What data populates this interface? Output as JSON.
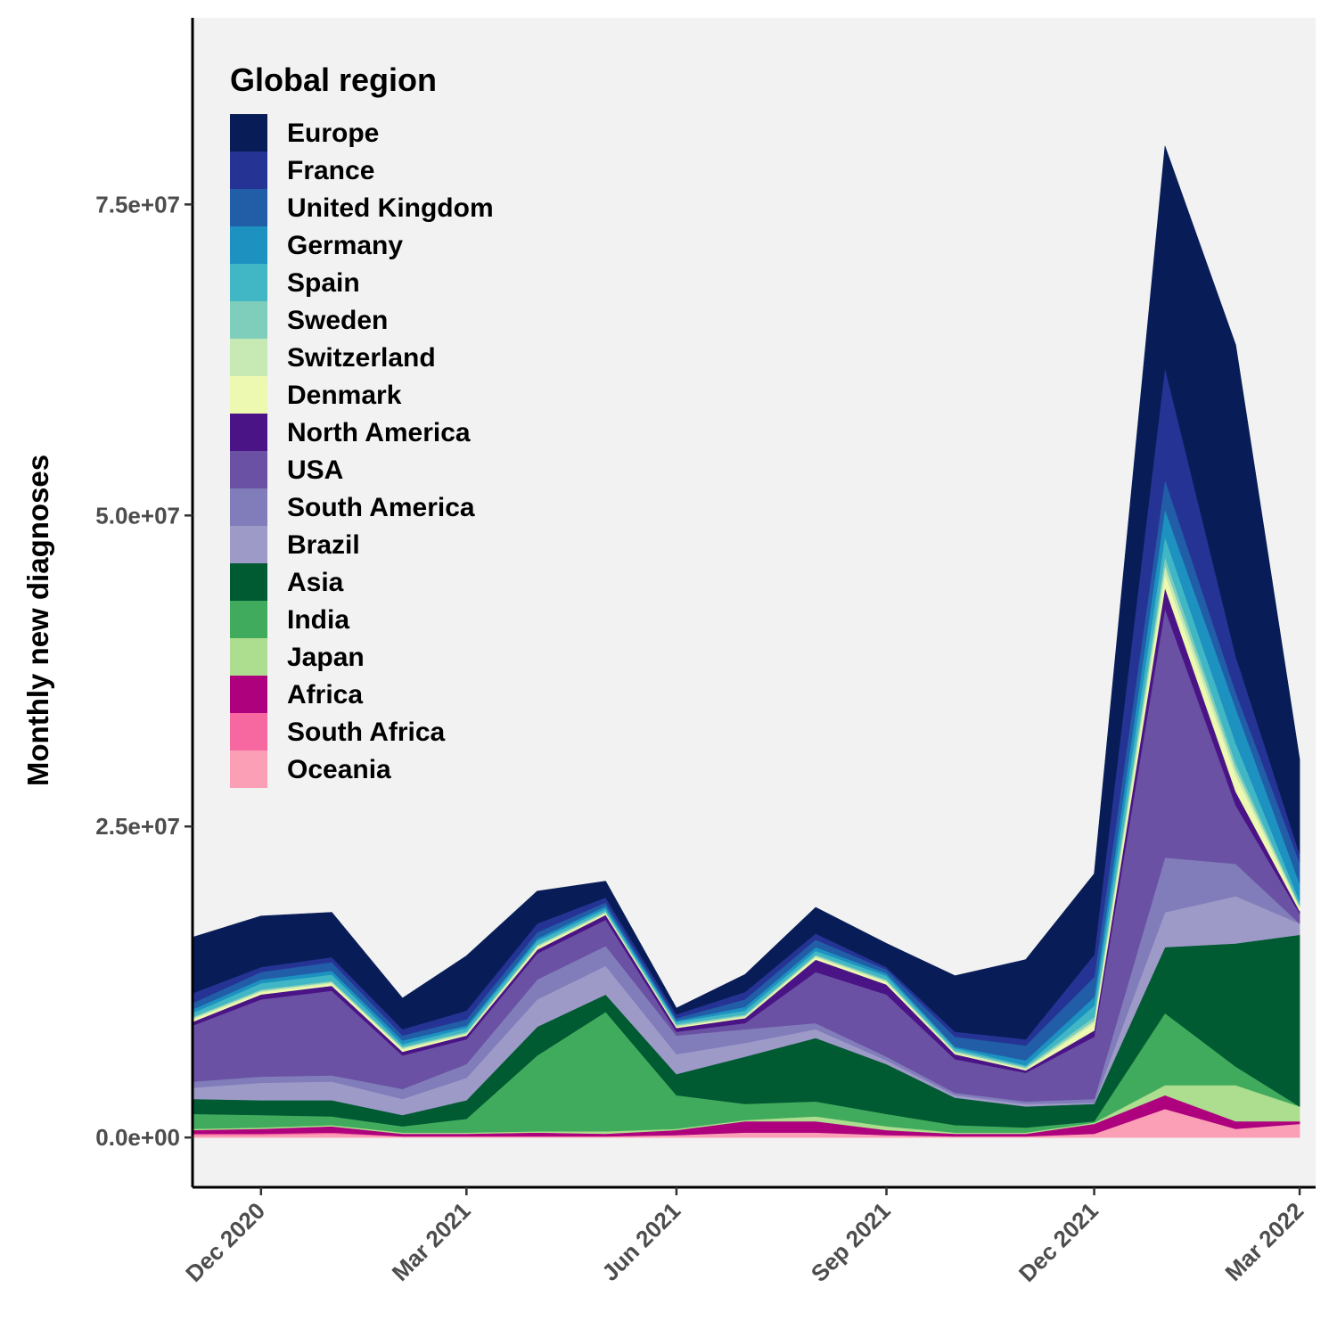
{
  "chart_data": {
    "type": "area",
    "stacked": true,
    "ylabel": "Monthly new diagnoses",
    "xlabel": "",
    "ylim": [
      -4000000,
      90000000
    ],
    "yticks": [
      0,
      25000000,
      50000000,
      75000000
    ],
    "ytick_labels": [
      "0.0e+00",
      "2.5e+07",
      "5.0e+07",
      "7.5e+07"
    ],
    "xlim": [
      "2020-11-01",
      "2022-03-08"
    ],
    "xticks": [
      "2020-12-01",
      "2021-03-01",
      "2021-06-01",
      "2021-09-01",
      "2021-12-01",
      "2022-03-01"
    ],
    "xtick_labels": [
      "Dec 2020",
      "Mar 2021",
      "Jun 2021",
      "Sep 2021",
      "Dec 2021",
      "Mar 2022"
    ],
    "background": "#f2f2f2",
    "legend": {
      "title": "Global region",
      "position": "top-left"
    },
    "x": [
      "2020-11-01",
      "2020-12-01",
      "2021-01-01",
      "2021-02-01",
      "2021-03-01",
      "2021-04-01",
      "2021-05-01",
      "2021-06-01",
      "2021-07-01",
      "2021-08-01",
      "2021-09-01",
      "2021-10-01",
      "2021-11-01",
      "2021-12-01",
      "2022-01-01",
      "2022-02-01",
      "2022-03-01"
    ],
    "series": [
      {
        "name": "Oceania",
        "color": "#fa9fb5",
        "values": [
          200000,
          200000,
          300000,
          100000,
          100000,
          100000,
          100000,
          200000,
          400000,
          400000,
          200000,
          100000,
          100000,
          300000,
          2300000,
          700000,
          1100000
        ]
      },
      {
        "name": "South Africa",
        "color": "#f768a1",
        "values": [
          100000,
          100000,
          100000,
          0,
          0,
          0,
          0,
          0,
          0,
          0,
          0,
          0,
          0,
          0,
          0,
          0,
          0
        ]
      },
      {
        "name": "Africa",
        "color": "#ae017e",
        "values": [
          300000,
          400000,
          500000,
          200000,
          200000,
          300000,
          200000,
          400000,
          900000,
          900000,
          400000,
          200000,
          200000,
          800000,
          1100000,
          600000,
          200000
        ]
      },
      {
        "name": "Japan",
        "color": "#addd8e",
        "values": [
          100000,
          100000,
          100000,
          100000,
          100000,
          100000,
          200000,
          100000,
          100000,
          400000,
          300000,
          100000,
          100000,
          100000,
          800000,
          2900000,
          1200000
        ]
      },
      {
        "name": "India",
        "color": "#41ab5d",
        "values": [
          1200000,
          1000000,
          700000,
          500000,
          1100000,
          6100000,
          9600000,
          2700000,
          1300000,
          1200000,
          1000000,
          600000,
          400000,
          100000,
          5800000,
          1500000,
          0
        ]
      },
      {
        "name": "Asia",
        "color": "#005a32",
        "values": [
          1200000,
          1200000,
          1300000,
          900000,
          1500000,
          2300000,
          1400000,
          1700000,
          3800000,
          5100000,
          4000000,
          2200000,
          1700000,
          1400000,
          5300000,
          9900000,
          13800000
        ]
      },
      {
        "name": "Brazil",
        "color": "#9e9ac8",
        "values": [
          900000,
          1400000,
          1500000,
          1300000,
          1800000,
          2200000,
          2300000,
          1600000,
          1100000,
          700000,
          300000,
          200000,
          200000,
          100000,
          2800000,
          3800000,
          900000
        ]
      },
      {
        "name": "South America",
        "color": "#807dba",
        "values": [
          500000,
          500000,
          500000,
          800000,
          1100000,
          1600000,
          1600000,
          1500000,
          1100000,
          500000,
          300000,
          200000,
          200000,
          300000,
          4400000,
          2600000,
          0
        ]
      },
      {
        "name": "USA",
        "color": "#6a51a3",
        "values": [
          4500000,
          6200000,
          6800000,
          2700000,
          2000000,
          2100000,
          2100000,
          300000,
          500000,
          4100000,
          5000000,
          2700000,
          2300000,
          5000000,
          20000000,
          4700000,
          800000
        ]
      },
      {
        "name": "North America",
        "color": "#4a1486",
        "values": [
          300000,
          400000,
          400000,
          300000,
          300000,
          300000,
          400000,
          300000,
          400000,
          1000000,
          800000,
          400000,
          200000,
          500000,
          1700000,
          1100000,
          200000
        ]
      },
      {
        "name": "Denmark",
        "color": "#edf8b1",
        "values": [
          200000,
          200000,
          200000,
          200000,
          100000,
          200000,
          100000,
          100000,
          100000,
          200000,
          200000,
          100000,
          100000,
          600000,
          1100000,
          1300000,
          300000
        ]
      },
      {
        "name": "Switzerland",
        "color": "#c7e9b4",
        "values": [
          100000,
          100000,
          100000,
          100000,
          100000,
          100000,
          100000,
          100000,
          100000,
          100000,
          100000,
          100000,
          100000,
          200000,
          700000,
          500000,
          100000
        ]
      },
      {
        "name": "Sweden",
        "color": "#7fcdbb",
        "values": [
          100000,
          100000,
          100000,
          100000,
          100000,
          100000,
          100000,
          100000,
          100000,
          100000,
          100000,
          100000,
          100000,
          300000,
          700000,
          500000,
          100000
        ]
      },
      {
        "name": "Spain",
        "color": "#41b6c4",
        "values": [
          300000,
          500000,
          500000,
          200000,
          300000,
          300000,
          200000,
          200000,
          300000,
          300000,
          300000,
          200000,
          100000,
          900000,
          1600000,
          1600000,
          300000
        ]
      },
      {
        "name": "Germany",
        "color": "#1d91c0",
        "values": [
          300000,
          300000,
          300000,
          300000,
          200000,
          200000,
          200000,
          100000,
          300000,
          300000,
          200000,
          100000,
          400000,
          700000,
          2200000,
          2800000,
          1400000
        ]
      },
      {
        "name": "United Kingdom",
        "color": "#225ea8",
        "values": [
          500000,
          600000,
          700000,
          400000,
          500000,
          500000,
          300000,
          200000,
          600000,
          600000,
          300000,
          800000,
          1200000,
          1600000,
          2400000,
          1300000,
          1700000
        ]
      },
      {
        "name": "France",
        "color": "#253494",
        "values": [
          800000,
          400000,
          400000,
          500000,
          700000,
          700000,
          400000,
          300000,
          600000,
          500000,
          200000,
          400000,
          500000,
          1800000,
          9000000,
          2900000,
          700000
        ]
      },
      {
        "name": "Europe",
        "color": "#081d58",
        "values": [
          4500000,
          4100000,
          3600000,
          2500000,
          4400000,
          2600000,
          1300000,
          500000,
          1400000,
          2100000,
          1900000,
          4500000,
          6400000,
          6500000,
          17800000,
          25000000,
          7600000
        ]
      }
    ],
    "legend_order": [
      "Europe",
      "France",
      "United Kingdom",
      "Germany",
      "Spain",
      "Sweden",
      "Switzerland",
      "Denmark",
      "North America",
      "USA",
      "South America",
      "Brazil",
      "Asia",
      "India",
      "Japan",
      "Africa",
      "South Africa",
      "Oceania"
    ]
  }
}
